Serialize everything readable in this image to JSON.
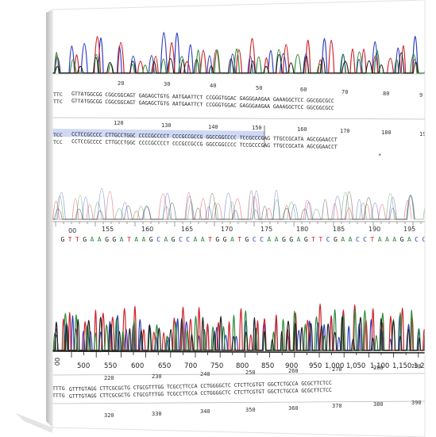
{
  "scene": "gallery canvas print of DNA sequencing chromatogram traces with aligned base sequences",
  "colors": {
    "trace_a": "#2e8b3a",
    "trace_c": "#2f3fc0",
    "trace_g": "#222222",
    "trace_t": "#d0202a",
    "highlight": "#cfd8f5",
    "canvas_edge": "#d9d9d9",
    "shadow": "#cfcfcf"
  },
  "alignment_top": {
    "ruler": [
      "20",
      "30",
      "40",
      "50",
      "60",
      "70",
      "80",
      "9"
    ],
    "row1": "GTTATGGCGG CGGCGGCAGT GAGAGCTGTG AATGAATTCT CCGGGTGGAC GAGGGAAGAA GAAAGGCTCC GGCGGCGCC",
    "row2": "GTTATGGCGG CGGCGGCAGT GAGAGCTGTG AATGAATTCT CCGGGTGGAC GAGGGAAGAA GAAAGGCTCC GGCGGCGCC",
    "left_stub": [
      "TTC",
      "TTC"
    ]
  },
  "alignment_mid": {
    "ruler": [
      "120",
      "130",
      "140",
      "150",
      "160",
      "170",
      "180",
      "19"
    ],
    "row1": "CCTCCGCCCC CTTGCCTGGC CCCCGCCCCT CCCGCCGCCG GGCCGGCCCC TCCGCCCGAG TTGCCGCATA AGCGGAACCT",
    "row2": "CCTCCGCCCC CTTGCCTGGC CCCCGCCCCT CCCGCCGCCG GGCCGGCCCC TCCGCCCGAG TTGCCGCATA AGCGGAACCT",
    "left_stub": [
      "TCC",
      "TCC"
    ]
  },
  "base_call": {
    "ruler": [
      "00",
      "155",
      "160",
      "165",
      "170",
      "175",
      "180",
      "185",
      "190",
      "195"
    ],
    "sequence": "GTTGAAGGATAAGCAGCCAATGGATGCCAAGGAGTTCGAACCTAAAGACC"
  },
  "lower_axis": {
    "ticks": [
      "500",
      "550",
      "600",
      "650",
      "700",
      "750",
      "800",
      "850",
      "900",
      "950",
      "1,000",
      "1,050",
      "1,100",
      "1,150",
      "1,20"
    ],
    "left_stub": "00"
  },
  "alignment_bottom": {
    "ruler": [
      "220",
      "230",
      "240",
      "250",
      "260",
      "270",
      "280",
      "290"
    ],
    "row1": "GTTTGTAGG CTTCGCGCTG CTGCGTTTGG TCGCCTTCCA CCTGGGGCTC CTCTTCGTGT GGCTCTGCCA GCGCTTCTCC",
    "row2": "GTTTGTAGG CTTCGCGCTG CTGCGTTTGG TCGCCTTCCA CCTGGGGCTC CTCTTCGTGT GGCTCTGCCA GCGCTTCTCC",
    "left_stub": [
      "TTTG",
      "TTTG"
    ],
    "ruler2": [
      "320",
      "330",
      "340",
      "350",
      "360",
      "370",
      "380",
      "390"
    ]
  }
}
